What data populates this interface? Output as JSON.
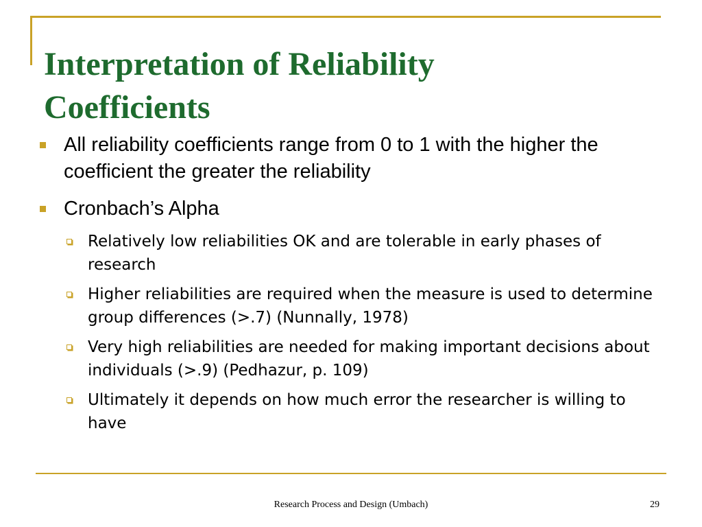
{
  "slide": {
    "title_line1": "Interpretation of  Reliability",
    "title_line2": "Coefficients",
    "bullets": [
      {
        "text": "All reliability coefficients range from 0 to 1 with the higher the coefficient the greater the reliability"
      },
      {
        "text": "Cronbach’s Alpha",
        "sub": [
          "Relatively low reliabilities OK and are tolerable in early phases of research",
          "Higher reliabilities are required when the measure is used to determine group differences (>.7) (Nunnally, 1978)",
          "Very high reliabilities are needed for making important decisions about individuals (>.9) (Pedhazur, p. 109)",
          "Ultimately it depends on how much error the researcher is willing to have"
        ]
      }
    ],
    "footer": "Research Process and Design (Umbach)",
    "page_number": "29"
  },
  "colors": {
    "title": "#1E6B2E",
    "accent": "#C9A227",
    "text": "#000000"
  },
  "icons": {
    "level1_bullet": "filled-square-icon",
    "level2_bullet": "hollow-shadow-square-icon"
  }
}
